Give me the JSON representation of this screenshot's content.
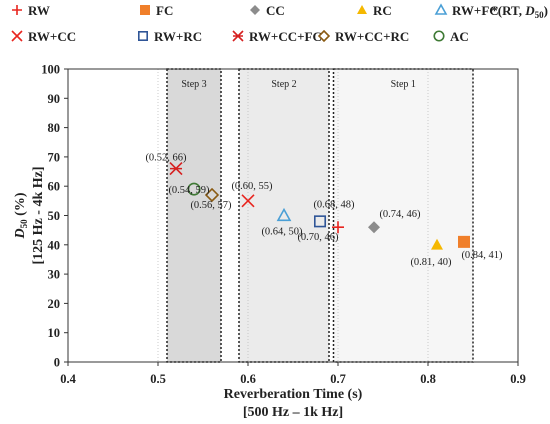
{
  "chart_data": {
    "type": "scatter",
    "title": "",
    "xlabel": "Reverberation Time (s)",
    "xlabel_sub": "[500 Hz – 1k Hz]",
    "ylabel_main": "D",
    "ylabel_sub": "50",
    "ylabel_unit": " (%)",
    "ylabel_range": "[125 Hz - 4k Hz]",
    "xlim": [
      0.4,
      0.9
    ],
    "ylim": [
      0,
      100
    ],
    "xticks": [
      "0.4",
      "0.5",
      "0.6",
      "0.7",
      "0.8",
      "0.9"
    ],
    "yticks": [
      "0",
      "10",
      "20",
      "30",
      "40",
      "50",
      "60",
      "70",
      "80",
      "90",
      "100"
    ],
    "grid": "vertical",
    "legend_note_prefix": "*(RT, ",
    "legend_note_var": "D",
    "legend_note_sub": "50",
    "legend_note_suffix": ")",
    "steps": [
      {
        "label": "Step 3",
        "x_start": 0.51,
        "x_end": 0.57,
        "color": "#d9d9d9"
      },
      {
        "label": "Step 2",
        "x_start": 0.59,
        "x_end": 0.69,
        "color": "#ebebeb"
      },
      {
        "label": "Step 1",
        "x_start": 0.695,
        "x_end": 0.85,
        "color": "#f6f6f6"
      }
    ],
    "series": [
      {
        "name": "RW",
        "x": 0.7,
        "y": 46,
        "label": "(0.70, 46)",
        "marker": "plus",
        "color": "#e8251f"
      },
      {
        "name": "FC",
        "x": 0.84,
        "y": 41,
        "label": "(0.84, 41)",
        "marker": "square-filled",
        "color": "#f07f2a"
      },
      {
        "name": "CC",
        "x": 0.74,
        "y": 46,
        "label": "(0.74, 46)",
        "marker": "diamond-filled",
        "color": "#8c8c8c"
      },
      {
        "name": "RC",
        "x": 0.81,
        "y": 40,
        "label": "(0.81, 40)",
        "marker": "triangle-filled",
        "color": "#f5b800"
      },
      {
        "name": "RW+FC",
        "x": 0.64,
        "y": 50,
        "label": "(0.64, 50)",
        "marker": "triangle-open",
        "color": "#4a9fd6"
      },
      {
        "name": "RW+CC",
        "x": 0.6,
        "y": 55,
        "label": "(0.60, 55)",
        "marker": "x",
        "color": "#e8251f"
      },
      {
        "name": "RW+RC",
        "x": 0.68,
        "y": 48,
        "label": "(0.68, 48)",
        "marker": "square-open",
        "color": "#2f5597"
      },
      {
        "name": "RW+CC+FC",
        "x": 0.52,
        "y": 66,
        "label": "(0.52, 66)",
        "marker": "asterisk",
        "color": "#d62020"
      },
      {
        "name": "RW+CC+RC",
        "x": 0.56,
        "y": 57,
        "label": "(0.56, 57)",
        "marker": "diamond-open",
        "color": "#8a5a12"
      },
      {
        "name": "AC",
        "x": 0.54,
        "y": 59,
        "label": "(0.54, 59)",
        "marker": "circle-open",
        "color": "#3f7a35"
      }
    ]
  }
}
